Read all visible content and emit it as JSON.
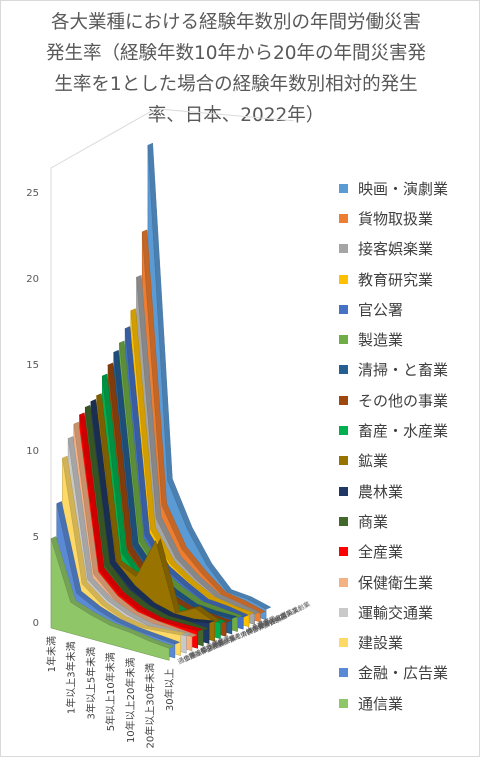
{
  "title": "各大業種における経験年数別の年間労働災害発生率（経験年数10年から20年の年間災害発生率を1とした場合の経験年数別相対的発生率、日本、2022年）",
  "title_lines": [
    "各大業種における経験年数別の年間労働災害",
    "発生率（経験年数10年から20年の年間災害発",
    "生率を1とした場合の経験年数別相対的発生",
    "率、日本、2022年）"
  ],
  "chart_data": {
    "type": "area",
    "subtype": "3d-area",
    "title": "各大業種における経験年数別の年間労働災害発生率（経験年数10年から20年の年間災害発生率を1とした場合の経験年数別相対的発生率、日本、2022年）",
    "categories": [
      "1年未満",
      "1年以上3年未満",
      "3年以上5年未満",
      "5年以上10年未満",
      "10年以上20年未満",
      "20年以上30年未満",
      "30年以上"
    ],
    "y_ticks": [
      "0",
      "5",
      "10",
      "15",
      "20",
      "25"
    ],
    "ylim": [
      0,
      25
    ],
    "grid": false,
    "legend_position": "right",
    "series": [
      {
        "name": "映画・演劇業",
        "color": "#5b9bd5",
        "values": [
          25.7,
          6.5,
          4.0,
          2.2,
          1.0,
          0.9,
          0.6
        ]
      },
      {
        "name": "貨物取扱業",
        "color": "#ed7d31",
        "values": [
          20.8,
          5.2,
          3.0,
          1.9,
          1.0,
          0.8,
          0.5
        ]
      },
      {
        "name": "接客娯楽業",
        "color": "#a5a5a5",
        "values": [
          18.3,
          4.6,
          2.6,
          1.7,
          1.0,
          0.8,
          0.6
        ]
      },
      {
        "name": "教育研究業",
        "color": "#ffc000",
        "values": [
          16.5,
          4.1,
          2.4,
          1.6,
          1.0,
          0.8,
          0.7
        ]
      },
      {
        "name": "官公署",
        "color": "#4472c4",
        "values": [
          15.6,
          3.9,
          2.3,
          1.6,
          1.0,
          0.9,
          0.7
        ]
      },
      {
        "name": "製造業",
        "color": "#70ad47",
        "values": [
          14.9,
          3.7,
          2.2,
          1.5,
          1.0,
          0.9,
          0.8
        ]
      },
      {
        "name": "清掃・と畜業",
        "color": "#255e91",
        "values": [
          14.5,
          3.6,
          2.2,
          1.5,
          1.0,
          0.9,
          0.9
        ]
      },
      {
        "name": "その他の事業",
        "color": "#9e480e",
        "values": [
          13.9,
          3.5,
          2.1,
          1.4,
          1.0,
          0.9,
          0.8
        ]
      },
      {
        "name": "畜産・水産業",
        "color": "#00b050",
        "values": [
          13.4,
          3.4,
          2.1,
          1.4,
          1.0,
          1.0,
          0.9
        ]
      },
      {
        "name": "鉱業",
        "color": "#997300",
        "values": [
          12.4,
          3.0,
          2.5,
          4.9,
          1.0,
          1.6,
          1.1
        ]
      },
      {
        "name": "農林業",
        "color": "#203864",
        "values": [
          12.2,
          3.1,
          2.0,
          1.3,
          1.0,
          1.0,
          1.2
        ]
      },
      {
        "name": "商業",
        "color": "#43682b",
        "values": [
          12.0,
          3.1,
          1.9,
          1.3,
          1.0,
          1.0,
          0.9
        ]
      },
      {
        "name": "全産業",
        "color": "#ff0000",
        "values": [
          11.7,
          3.0,
          1.9,
          1.3,
          1.0,
          1.0,
          1.0
        ]
      },
      {
        "name": "保健衛生業",
        "color": "#f4b183",
        "values": [
          11.3,
          2.9,
          1.8,
          1.2,
          1.0,
          0.9,
          0.8
        ]
      },
      {
        "name": "運輸交通業",
        "color": "#c9c9c9",
        "values": [
          10.6,
          2.7,
          1.8,
          1.3,
          1.0,
          1.0,
          1.0
        ]
      },
      {
        "name": "建設業",
        "color": "#ffd966",
        "values": [
          9.6,
          2.6,
          1.7,
          1.2,
          1.0,
          1.1,
          1.2
        ]
      },
      {
        "name": "金融・広告業",
        "color": "#5a8ad6",
        "values": [
          7.1,
          2.2,
          1.6,
          1.2,
          1.0,
          0.9,
          0.8
        ]
      },
      {
        "name": "通信業",
        "color": "#8fc668",
        "values": [
          5.2,
          1.8,
          1.4,
          1.1,
          1.0,
          0.8,
          0.7
        ]
      }
    ]
  }
}
